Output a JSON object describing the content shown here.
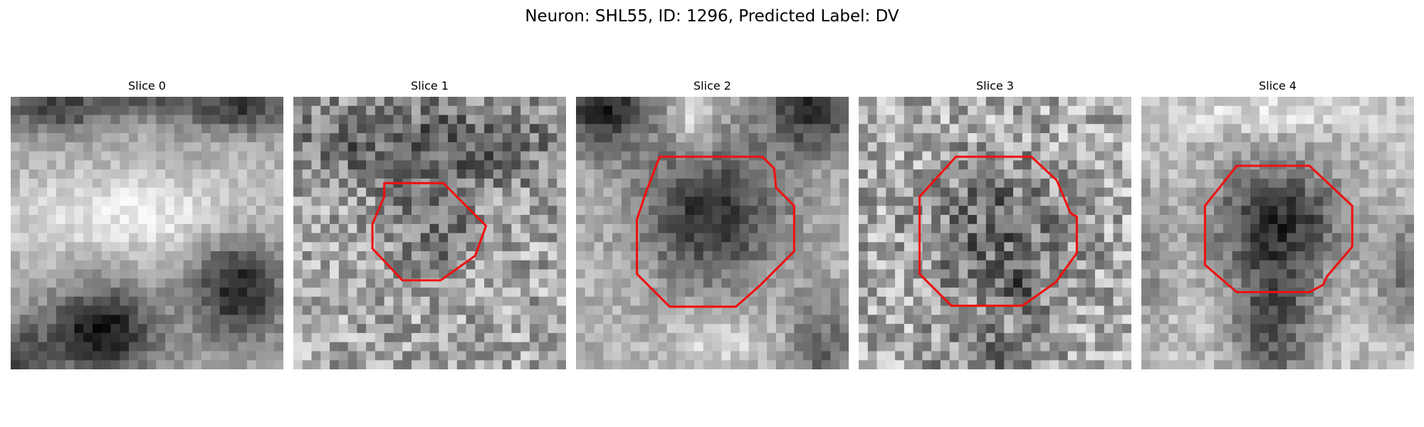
{
  "figure": {
    "title": "Neuron: SHL55, ID: 1296, Predicted Label: DV",
    "outline_color": "#ee1111"
  },
  "panels": [
    {
      "title": "Slice 0"
    },
    {
      "title": "Slice 1"
    },
    {
      "title": "Slice 2"
    },
    {
      "title": "Slice 3"
    },
    {
      "title": "Slice 4"
    }
  ]
}
